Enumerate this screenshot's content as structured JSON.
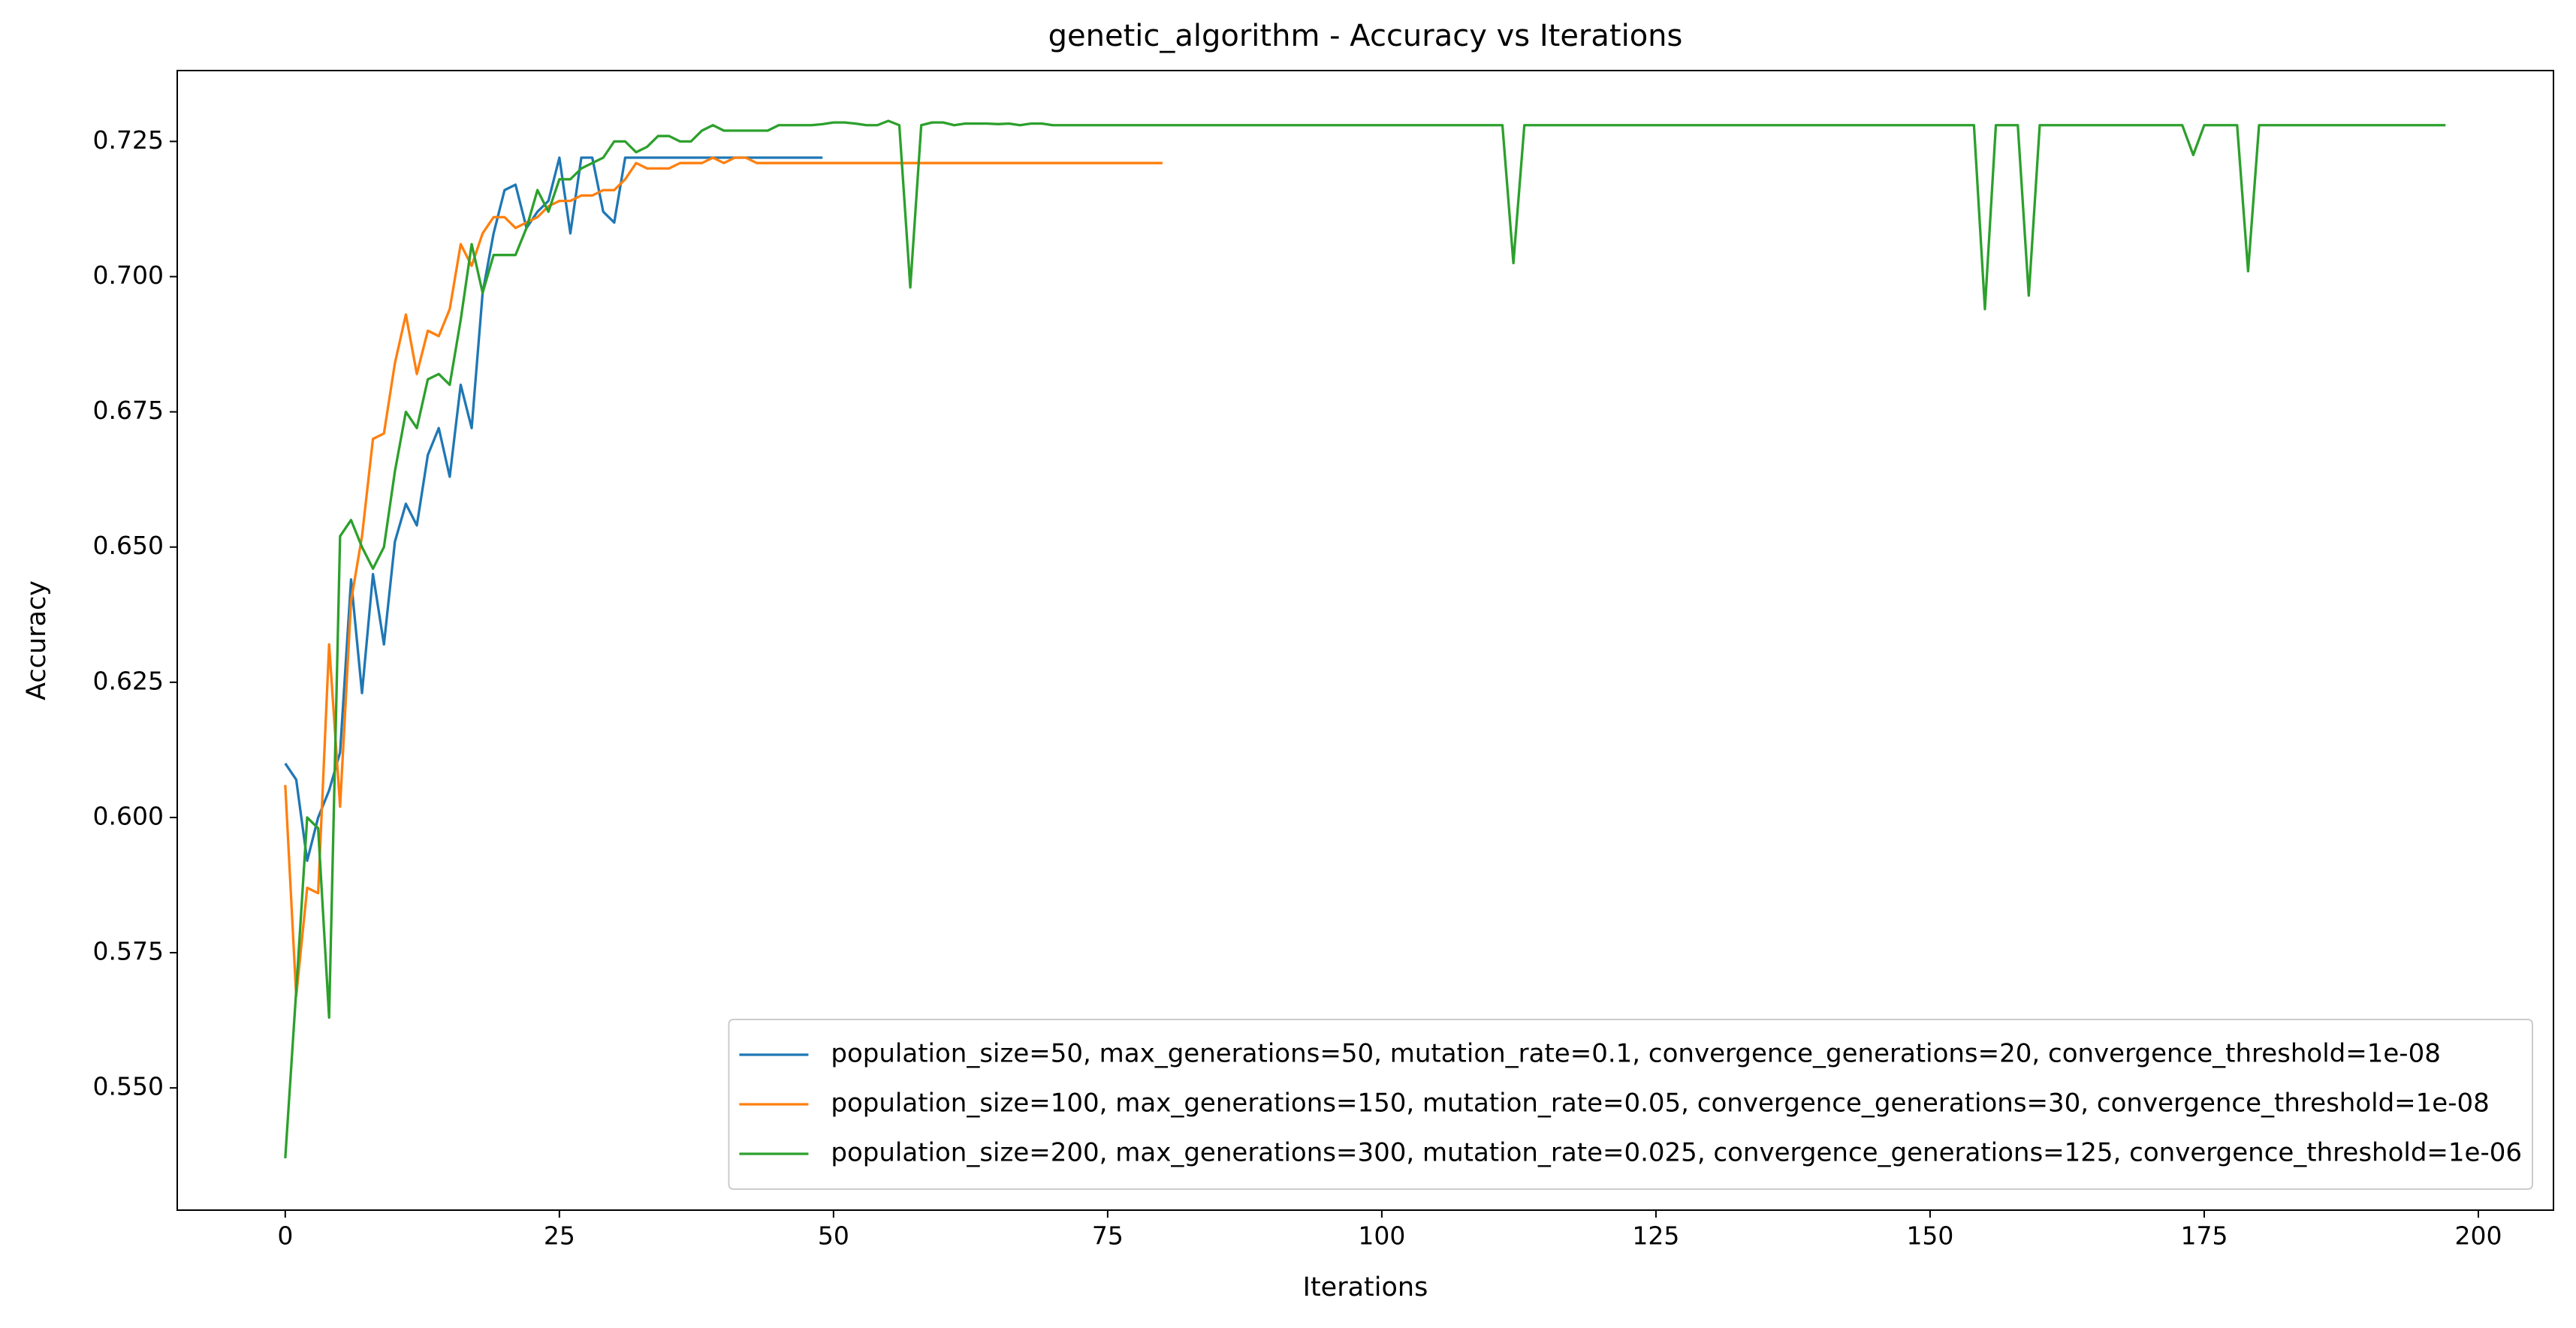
{
  "chart_data": {
    "type": "line",
    "title": "genetic_algorithm - Accuracy vs Iterations",
    "x_label": "Iterations",
    "y_label": "Accuracy",
    "xlim": [
      -9.85,
      206.85
    ],
    "ylim": [
      0.5274,
      0.7381
    ],
    "xticks": [
      0,
      25,
      50,
      75,
      100,
      125,
      150,
      175,
      200
    ],
    "yticks": [
      {
        "value": 0.55,
        "label": "0.550"
      },
      {
        "value": 0.575,
        "label": "0.575"
      },
      {
        "value": 0.6,
        "label": "0.600"
      },
      {
        "value": 0.625,
        "label": "0.625"
      },
      {
        "value": 0.65,
        "label": "0.650"
      },
      {
        "value": 0.675,
        "label": "0.675"
      },
      {
        "value": 0.7,
        "label": "0.700"
      },
      {
        "value": 0.725,
        "label": "0.725"
      }
    ],
    "legend_position": "lower right",
    "series": [
      {
        "name": "population_size=50, max_generations=50, mutation_rate=0.1, convergence_generations=20, convergence_threshold=1e-08",
        "color": "#1f77b4",
        "values": [
          0.61,
          0.607,
          0.592,
          0.6,
          0.605,
          0.612,
          0.644,
          0.623,
          0.645,
          0.632,
          0.651,
          0.658,
          0.654,
          0.667,
          0.672,
          0.663,
          0.68,
          0.672,
          0.697,
          0.708,
          0.716,
          0.717,
          0.709,
          0.712,
          0.714,
          0.722,
          0.708,
          0.722,
          0.722,
          0.712,
          0.71,
          0.722,
          0.722,
          0.722,
          0.722,
          0.722,
          0.722,
          0.722,
          0.722,
          0.722,
          0.722,
          0.722,
          0.722,
          0.722,
          0.722,
          0.722,
          0.722,
          0.722,
          0.722,
          0.722
        ]
      },
      {
        "name": "population_size=100, max_generations=150, mutation_rate=0.05, convergence_generations=30, convergence_threshold=1e-08",
        "color": "#ff7f0e",
        "values": [
          0.606,
          0.567,
          0.587,
          0.586,
          0.632,
          0.602,
          0.64,
          0.652,
          0.67,
          0.671,
          0.684,
          0.693,
          0.682,
          0.69,
          0.689,
          0.694,
          0.706,
          0.702,
          0.708,
          0.711,
          0.711,
          0.709,
          0.71,
          0.711,
          0.713,
          0.714,
          0.714,
          0.715,
          0.715,
          0.716,
          0.716,
          0.718,
          0.721,
          0.72,
          0.72,
          0.72,
          0.721,
          0.721,
          0.721,
          0.722,
          0.721,
          0.722,
          0.722,
          0.721,
          0.721,
          0.721,
          0.721,
          0.721,
          0.721,
          0.721,
          0.721,
          0.721,
          0.721,
          0.721,
          0.721,
          0.721,
          0.721,
          0.721,
          0.721,
          0.721,
          0.721,
          0.721,
          0.721,
          0.721,
          0.721,
          0.721,
          0.721,
          0.721,
          0.721,
          0.721,
          0.721,
          0.721,
          0.721,
          0.721,
          0.721,
          0.721,
          0.721,
          0.721,
          0.721,
          0.721,
          0.721
        ]
      },
      {
        "name": "population_size=200, max_generations=300, mutation_rate=0.025, convergence_generations=125, convergence_threshold=1e-06",
        "color": "#2ca02c",
        "values": [
          0.537,
          0.568,
          0.6,
          0.598,
          0.563,
          0.652,
          0.655,
          0.65,
          0.646,
          0.65,
          0.664,
          0.675,
          0.672,
          0.681,
          0.682,
          0.68,
          0.692,
          0.706,
          0.697,
          0.704,
          0.704,
          0.704,
          0.709,
          0.716,
          0.712,
          0.718,
          0.718,
          0.72,
          0.721,
          0.722,
          0.725,
          0.725,
          0.723,
          0.724,
          0.726,
          0.726,
          0.725,
          0.725,
          0.727,
          0.728,
          0.727,
          0.727,
          0.727,
          0.727,
          0.727,
          0.728,
          0.728,
          0.728,
          0.728,
          0.7282,
          0.7285,
          0.7285,
          0.7283,
          0.728,
          0.728,
          0.7288,
          0.728,
          0.698,
          0.728,
          0.7285,
          0.7285,
          0.728,
          0.7283,
          0.7283,
          0.7283,
          0.7282,
          0.7283,
          0.728,
          0.7283,
          0.7283,
          0.728,
          0.728,
          0.728,
          0.728,
          0.728,
          0.728,
          0.728,
          0.728,
          0.728,
          0.728,
          0.728,
          0.728,
          0.728,
          0.728,
          0.728,
          0.728,
          0.728,
          0.728,
          0.728,
          0.728,
          0.728,
          0.728,
          0.728,
          0.728,
          0.728,
          0.728,
          0.728,
          0.728,
          0.728,
          0.728,
          0.728,
          0.728,
          0.728,
          0.728,
          0.728,
          0.728,
          0.728,
          0.728,
          0.728,
          0.728,
          0.728,
          0.728,
          0.7025,
          0.728,
          0.728,
          0.728,
          0.728,
          0.728,
          0.728,
          0.728,
          0.728,
          0.728,
          0.728,
          0.728,
          0.728,
          0.728,
          0.728,
          0.728,
          0.728,
          0.728,
          0.728,
          0.728,
          0.728,
          0.728,
          0.728,
          0.728,
          0.728,
          0.728,
          0.728,
          0.728,
          0.728,
          0.728,
          0.728,
          0.728,
          0.728,
          0.728,
          0.728,
          0.728,
          0.728,
          0.728,
          0.728,
          0.728,
          0.728,
          0.728,
          0.728,
          0.694,
          0.728,
          0.728,
          0.728,
          0.6965,
          0.728,
          0.728,
          0.728,
          0.728,
          0.728,
          0.728,
          0.728,
          0.728,
          0.728,
          0.728,
          0.728,
          0.728,
          0.728,
          0.728,
          0.7225,
          0.728,
          0.728,
          0.728,
          0.728,
          0.701,
          0.728,
          0.728,
          0.728,
          0.728,
          0.728,
          0.728,
          0.728,
          0.728,
          0.728,
          0.728,
          0.728,
          0.728,
          0.728,
          0.728,
          0.728,
          0.728,
          0.728,
          0.728
        ]
      }
    ]
  }
}
